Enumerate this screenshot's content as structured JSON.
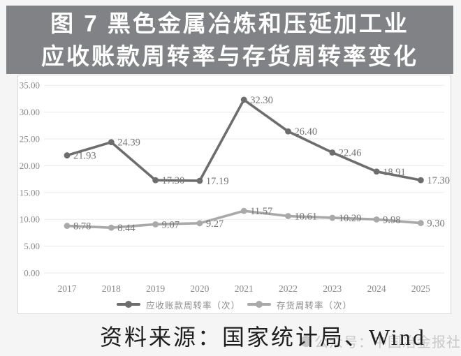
{
  "page": {
    "background": "#f5f5f6"
  },
  "title": {
    "line1": "图 7 黑色金属冶炼和压延加工业",
    "line2": "应收账款周转率与存货周转率变化",
    "bar_color": "#808285",
    "text_color": "#ffffff"
  },
  "source": {
    "text": "资料来源：国家统计局、Wind"
  },
  "watermark": {
    "text": "公众号：中国冶金报社"
  },
  "chart_data": {
    "type": "line",
    "title": "",
    "xlabel": "",
    "ylabel": "",
    "categories": [
      "2017",
      "2018",
      "2019",
      "2020",
      "2021",
      "2022",
      "2023",
      "2024",
      "2025"
    ],
    "series": [
      {
        "name": "应收账款周转率（次）",
        "color": "#6d6d6d",
        "values": [
          21.93,
          24.39,
          17.3,
          17.19,
          32.3,
          26.4,
          22.46,
          18.91,
          17.3
        ]
      },
      {
        "name": "存货周转率（次）",
        "color": "#a9a9a9",
        "values": [
          8.78,
          8.44,
          9.07,
          9.27,
          11.57,
          10.61,
          10.29,
          9.98,
          9.3
        ]
      }
    ],
    "ylim": [
      0,
      35
    ],
    "ytick_step": 5,
    "ytick_decimals": 2,
    "grid": true,
    "legend_position": "bottom",
    "colors": {
      "gridline": "#eaeaea",
      "tick_label": "#8a8a8a",
      "data_label": "#757575",
      "plot_bg": "#ffffff",
      "border": "#d8d8d8"
    }
  }
}
